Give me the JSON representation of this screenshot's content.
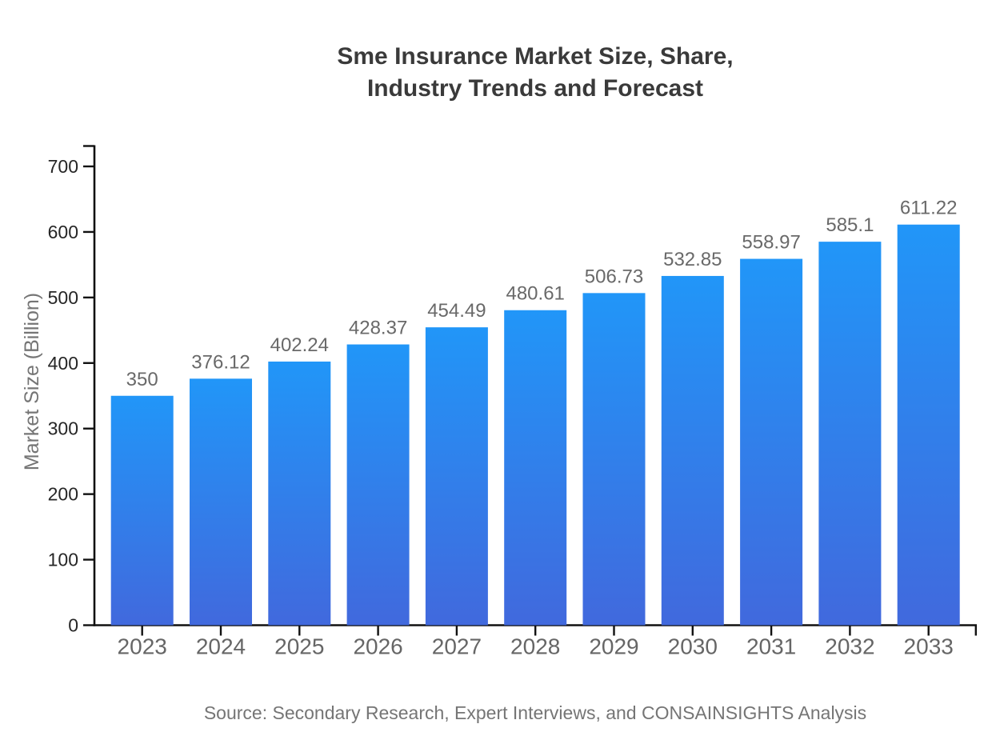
{
  "title": {
    "line1": "Sme Insurance Market Size, Share,",
    "line2": "Industry Trends and Forecast"
  },
  "source": "Source: Secondary Research, Expert Interviews, and CONSAINSIGHTS Analysis",
  "chart_data": {
    "type": "bar",
    "title": "Sme Insurance Market Size, Share, Industry Trends and Forecast",
    "categories": [
      "2023",
      "2024",
      "2025",
      "2026",
      "2027",
      "2028",
      "2029",
      "2030",
      "2031",
      "2032",
      "2033"
    ],
    "values": [
      350,
      376.12,
      402.24,
      428.37,
      454.49,
      480.61,
      506.73,
      532.85,
      558.97,
      585.1,
      611.22
    ],
    "value_labels": [
      "350",
      "376.12",
      "402.24",
      "428.37",
      "454.49",
      "480.61",
      "506.73",
      "532.85",
      "558.97",
      "585.1",
      "611.22"
    ],
    "xlabel": "",
    "ylabel": "Market Size (Billion)",
    "ylim": [
      0,
      700
    ],
    "yticks": [
      0,
      100,
      200,
      300,
      400,
      500,
      600,
      700
    ],
    "grid": false,
    "legend": "none",
    "colors": {
      "bar_gradient_top": "#2196F8",
      "bar_gradient_bottom": "#4169DD",
      "axis": "#111111",
      "background": "#ffffff"
    }
  }
}
